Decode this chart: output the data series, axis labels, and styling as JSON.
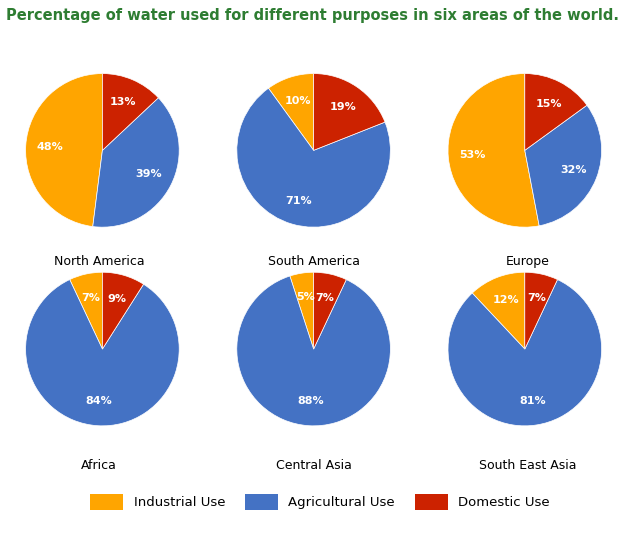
{
  "title": "Percentage of water used for different purposes in six areas of the world.",
  "title_color": "#2E7D32",
  "background_color": "#ffffff",
  "regions": [
    {
      "name": "North America",
      "values": [
        48,
        39,
        13
      ]
    },
    {
      "name": "South America",
      "values": [
        10,
        71,
        19
      ]
    },
    {
      "name": "Europe",
      "values": [
        53,
        32,
        15
      ]
    },
    {
      "name": "Africa",
      "values": [
        7,
        84,
        9
      ]
    },
    {
      "name": "Central Asia",
      "values": [
        5,
        88,
        7
      ]
    },
    {
      "name": "South East Asia",
      "values": [
        12,
        81,
        7
      ]
    }
  ],
  "colors": [
    "#FFA500",
    "#4472C4",
    "#CC2200"
  ],
  "legend_labels": [
    "Industrial Use",
    "Agricultural Use",
    "Domestic Use"
  ],
  "pct_fontsize": 8,
  "region_fontsize": 9,
  "title_fontsize": 10.5,
  "startangle": 90
}
